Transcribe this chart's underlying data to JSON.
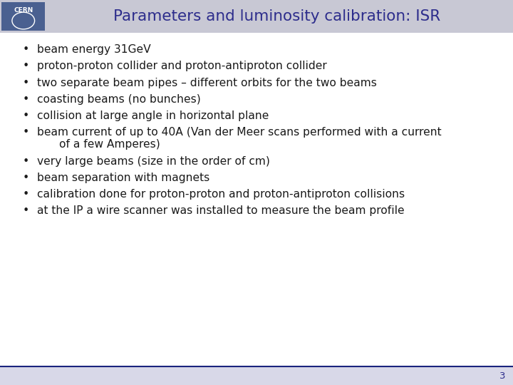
{
  "title": "Parameters and luminosity calibration: ISR",
  "title_color": "#2d2d8c",
  "header_bg_color": "#c8c8d4",
  "body_bg_color": "#ffffff",
  "footer_bg_color": "#d8d8e8",
  "footer_line_color": "#1a237e",
  "footer_number": "3",
  "footer_number_color": "#2d2d8c",
  "bullet_color": "#1a1a1a",
  "text_color": "#1a1a1a",
  "bullet_items": [
    "beam energy 31GeV",
    "proton-proton collider and proton-antiproton collider",
    "two separate beam pipes – different orbits for the two beams",
    "coasting beams (no bunches)",
    "collision at large angle in horizontal plane",
    [
      "beam current of up to 40A (Van der Meer scans performed with a current",
      "of a few Amperes)"
    ],
    "very large beams (size in the order of cm)",
    "beam separation with magnets",
    "calibration done for proton-proton and proton-antiproton collisions",
    "at the IP a wire scanner was installed to measure the beam profile"
  ],
  "font_size_title": 15.5,
  "font_size_body": 11.2,
  "font_size_footer": 9.5,
  "cern_logo_color": "#4a6090",
  "fig_width": 7.2,
  "fig_height": 5.4,
  "dpi": 100
}
